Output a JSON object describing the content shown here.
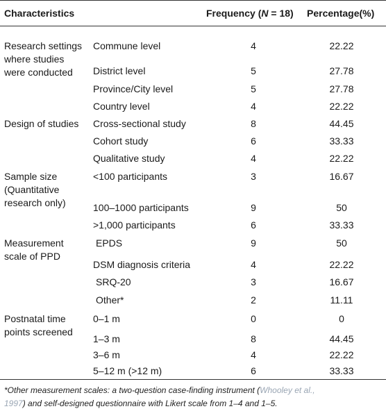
{
  "header": {
    "characteristics": "Characteristics",
    "frequency_prefix": "Frequency (",
    "frequency_n": "N",
    "frequency_suffix": " = 18)",
    "percentage": "Percentage(%)"
  },
  "groups": [
    {
      "label_lines": [
        "Research settings",
        "where studies",
        "were conducted"
      ]
    },
    {
      "label_lines": [
        "Design of studies"
      ]
    },
    {
      "label_lines": [
        "Sample size",
        "(Quantitative",
        "research only)"
      ]
    },
    {
      "label_lines": [
        "Measurement",
        "scale of PPD"
      ]
    },
    {
      "label_lines": [
        "Postnatal time",
        "points screened"
      ]
    }
  ],
  "rows": [
    {
      "item": "Commune level",
      "frequency": "4",
      "percentage": "22.22"
    },
    {
      "item": "District level",
      "frequency": "5",
      "percentage": "27.78"
    },
    {
      "item": "Province/City level",
      "frequency": "5",
      "percentage": "27.78"
    },
    {
      "item": "Country level",
      "frequency": "4",
      "percentage": "22.22"
    },
    {
      "item": "Cross-sectional study",
      "frequency": "8",
      "percentage": "44.45"
    },
    {
      "item": "Cohort study",
      "frequency": "6",
      "percentage": "33.33"
    },
    {
      "item": "Qualitative study",
      "frequency": "4",
      "percentage": "22.22"
    },
    {
      "item": "<100 participants",
      "frequency": "3",
      "percentage": "16.67"
    },
    {
      "item": "100–1000 participants",
      "frequency": "9",
      "percentage": "50"
    },
    {
      "item": ">1,000 participants",
      "frequency": "6",
      "percentage": "33.33"
    },
    {
      "item": "EPDS",
      "frequency": "9",
      "percentage": "50"
    },
    {
      "item": "DSM diagnosis criteria",
      "frequency": "4",
      "percentage": "22.22"
    },
    {
      "item": "SRQ-20",
      "frequency": "3",
      "percentage": "16.67"
    },
    {
      "item": "Other*",
      "frequency": "2",
      "percentage": "11.11"
    },
    {
      "item": "0–1 m",
      "frequency": "0",
      "percentage": "0"
    },
    {
      "item": "1–3 m",
      "frequency": "8",
      "percentage": "44.45"
    },
    {
      "item": "3–6 m",
      "frequency": "4",
      "percentage": "22.22"
    },
    {
      "item": "5–12 m (>12 m)",
      "frequency": "6",
      "percentage": "33.33"
    }
  ],
  "footnote": {
    "line1_before": "*Other measurement scales: a two-question case-finding instrument (",
    "cite1": "Whooley et al.,",
    "cite2": "1997",
    "line2_after": ") and self-designed questionnaire with Likert scale from 1–4 and 1–5."
  }
}
